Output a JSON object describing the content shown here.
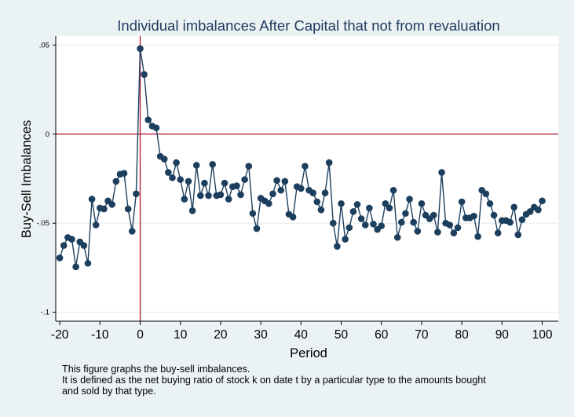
{
  "chart_data": {
    "type": "line",
    "title": "Individual imbalances After Capital that not from revaluation",
    "xlabel": "Period",
    "ylabel": "Buy-Sell Imbalances",
    "xlim": [
      -21,
      104
    ],
    "ylim": [
      -0.105,
      0.055
    ],
    "x_ticks": [
      -20,
      -10,
      0,
      10,
      20,
      30,
      40,
      50,
      60,
      70,
      80,
      90,
      100
    ],
    "x_tick_labels": [
      "-20",
      "-10",
      "0",
      "10",
      "20",
      "30",
      "40",
      "50",
      "60",
      "70",
      "80",
      "90",
      "100"
    ],
    "y_ticks": [
      -0.1,
      -0.05,
      0,
      0.05
    ],
    "y_tick_labels": [
      "-.1",
      "-.05",
      "0",
      ".05"
    ],
    "grid": true,
    "reference_lines": {
      "x": 0,
      "y": 0
    },
    "colors": {
      "background": "#eaf2f3",
      "plot_area": "#ffffff",
      "series": "#1d3f5e",
      "reference": "#b2152e",
      "grid": "#e3ebed"
    },
    "series": [
      {
        "x": [
          -20,
          -19,
          -18,
          -17,
          -16,
          -15,
          -14,
          -13,
          -12,
          -11,
          -10,
          -9,
          -8,
          -7,
          -6,
          -5,
          -4,
          -3,
          -2,
          -1,
          0,
          1,
          2,
          3,
          4,
          5,
          6,
          7,
          8,
          9,
          10,
          11,
          12,
          13,
          14,
          15,
          16,
          17,
          18,
          19,
          20,
          21,
          22,
          23,
          24,
          25,
          26,
          27,
          28,
          29,
          30,
          31,
          32,
          33,
          34,
          35,
          36,
          37,
          38,
          39,
          40,
          41,
          42,
          43,
          44,
          45,
          46,
          47,
          48,
          49,
          50,
          51,
          52,
          53,
          54,
          55,
          56,
          57,
          58,
          59,
          60,
          61,
          62,
          63,
          64,
          65,
          66,
          67,
          68,
          69,
          70,
          71,
          72,
          73,
          74,
          75,
          76,
          77,
          78,
          79,
          80,
          81,
          82,
          83,
          84,
          85,
          86,
          87,
          88,
          89,
          90,
          91,
          92,
          93,
          94,
          95,
          96,
          97,
          98,
          99,
          100
        ],
        "values": [
          -0.0695,
          -0.0625,
          -0.058,
          -0.059,
          -0.0745,
          -0.0605,
          -0.0625,
          -0.0725,
          -0.0365,
          -0.051,
          -0.0415,
          -0.042,
          -0.0375,
          -0.0395,
          -0.0265,
          -0.0225,
          -0.022,
          -0.042,
          -0.0545,
          -0.0335,
          0.048,
          0.0335,
          0.008,
          0.0045,
          0.0035,
          -0.0125,
          -0.014,
          -0.0215,
          -0.0245,
          -0.016,
          -0.0255,
          -0.0365,
          -0.0265,
          -0.043,
          -0.0175,
          -0.0345,
          -0.0275,
          -0.0345,
          -0.017,
          -0.0345,
          -0.034,
          -0.0275,
          -0.0365,
          -0.0295,
          -0.029,
          -0.034,
          -0.0255,
          -0.018,
          -0.0445,
          -0.053,
          -0.036,
          -0.0375,
          -0.039,
          -0.0335,
          -0.026,
          -0.0315,
          -0.0265,
          -0.045,
          -0.0465,
          -0.0295,
          -0.0305,
          -0.018,
          -0.0315,
          -0.033,
          -0.038,
          -0.0425,
          -0.033,
          -0.016,
          -0.05,
          -0.063,
          -0.039,
          -0.059,
          -0.0525,
          -0.0435,
          -0.0395,
          -0.0475,
          -0.051,
          -0.0415,
          -0.0505,
          -0.0535,
          -0.0515,
          -0.039,
          -0.0415,
          -0.0315,
          -0.058,
          -0.0495,
          -0.0445,
          -0.0365,
          -0.0495,
          -0.0545,
          -0.039,
          -0.0455,
          -0.0475,
          -0.0455,
          -0.055,
          -0.0215,
          -0.05,
          -0.051,
          -0.0555,
          -0.0525,
          -0.038,
          -0.047,
          -0.047,
          -0.046,
          -0.0575,
          -0.0315,
          -0.0335,
          -0.039,
          -0.0455,
          -0.0555,
          -0.0485,
          -0.0485,
          -0.0495,
          -0.041,
          -0.0565,
          -0.048,
          -0.045,
          -0.0435,
          -0.041,
          -0.0425,
          -0.0375
        ]
      }
    ]
  },
  "note": [
    "This figure graphs the buy-sell imbalances.",
    "It is defined as the net buying ratio of stock k on date t by a particular type to the amounts bought",
    "and sold by that type."
  ]
}
